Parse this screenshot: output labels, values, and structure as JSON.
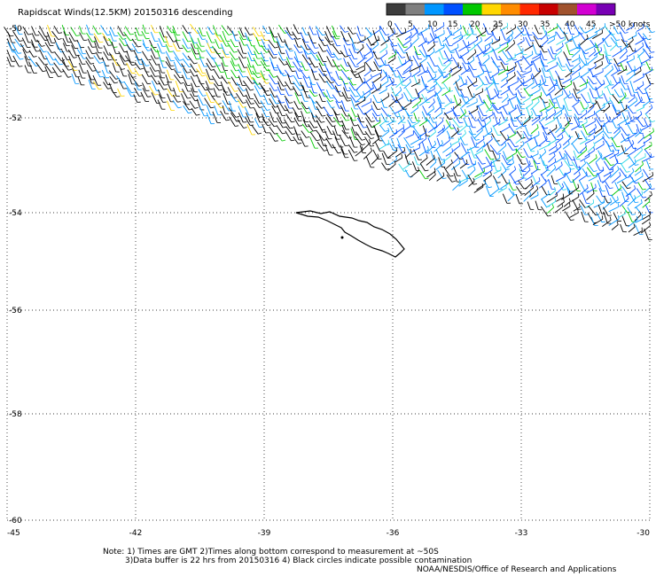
{
  "title": "Rapidscat Winds(12.5KM) 20150316 descending",
  "legend": {
    "labels": [
      "0",
      "5",
      "10",
      "15",
      "20",
      "25",
      "30",
      "35",
      "40",
      "45",
      ">50 knots"
    ],
    "colors": [
      "#3c3c3c",
      "#7f7f7f",
      "#0096ff",
      "#0050ff",
      "#00c800",
      "#ffd700",
      "#ff8c00",
      "#ff2800",
      "#c80000",
      "#a0522d",
      "#d200d2",
      "#7800b4"
    ]
  },
  "map": {
    "lon_ticks": [
      "-45",
      "-42",
      "-39",
      "-36",
      "-33",
      "-30"
    ],
    "lat_ticks": [
      "-50",
      "-52",
      "-54",
      "-56",
      "-58",
      "-60"
    ],
    "lon_range": [
      -45,
      -30
    ],
    "lat_range": [
      -60,
      -50
    ],
    "grid": true,
    "island": "South Georgia outline",
    "wind_barbs": true
  },
  "notes": {
    "line1": "Note: 1) Times are GMT 2)Times along bottom correspond to measurement at ~50S",
    "line2": "3)Data buffer is 22 hrs from 20150316 4) Black circles indicate possible contamination",
    "line3": "NOAA/NESDIS/Office of Research and Applications"
  }
}
